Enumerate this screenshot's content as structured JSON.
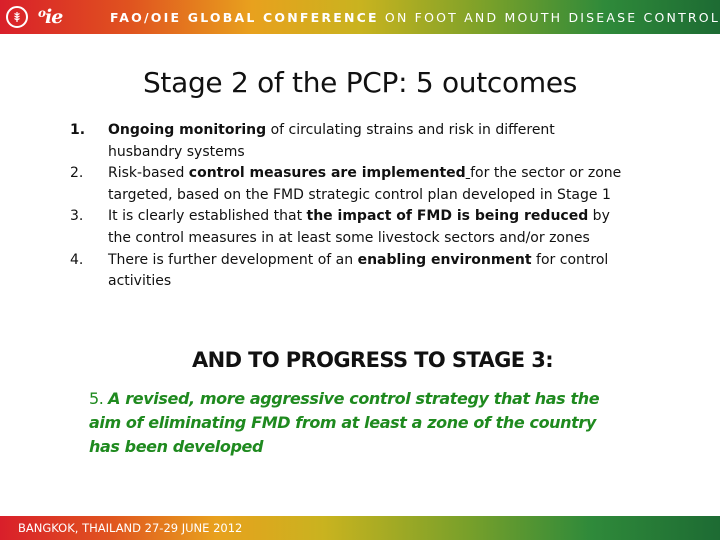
{
  "banner": {
    "logo_fao": "FAO",
    "logo_oie": "OIE",
    "title_bold": "FAO/OIE GLOBAL CONFERENCE",
    "title_rest": " ON FOOT AND MOUTH DISEASE CONTROL"
  },
  "slide": {
    "title": "Stage 2 of the PCP: 5 outcomes"
  },
  "outcomes": [
    {
      "num": "1.",
      "parts": [
        {
          "text": "Ongoing monitoring",
          "style": "bold"
        },
        {
          "text": " of circulating strains and risk in different husbandry systems",
          "style": "normal"
        }
      ]
    },
    {
      "num": "2.",
      "parts": [
        {
          "text": "Risk-based ",
          "style": "normal"
        },
        {
          "text": "control measures are implemented",
          "style": "bold"
        },
        {
          "text": " ",
          "style": "underline"
        },
        {
          "text": "for the sector or zone targeted, based on the FMD strategic control plan developed in Stage 1",
          "style": "normal"
        }
      ]
    },
    {
      "num": "3.",
      "parts": [
        {
          "text": "It is clearly established that ",
          "style": "normal"
        },
        {
          "text": "the impact of FMD is being reduced",
          "style": "bold"
        },
        {
          "text": " by the control measures in at least some livestock sectors and/or zones",
          "style": "normal"
        }
      ]
    },
    {
      "num": "4.",
      "parts": [
        {
          "text": "There is further development of an ",
          "style": "normal"
        },
        {
          "text": "enabling environment",
          "style": "bold"
        },
        {
          "text": " for control activities",
          "style": "normal"
        }
      ]
    }
  ],
  "progress": {
    "heading": "AND TO PROGRESS TO STAGE 3:",
    "number": "5. ",
    "statement": "A revised, more aggressive control strategy that has the aim of eliminating FMD from at least a zone of the country has been developed"
  },
  "footer": {
    "text": "BANGKOK, THAILAND 27-29 JUNE 2012"
  },
  "colors": {
    "stage3_text": "#1f8a1f",
    "banner_start": "#d91f2a",
    "banner_end": "#1d6b33"
  }
}
